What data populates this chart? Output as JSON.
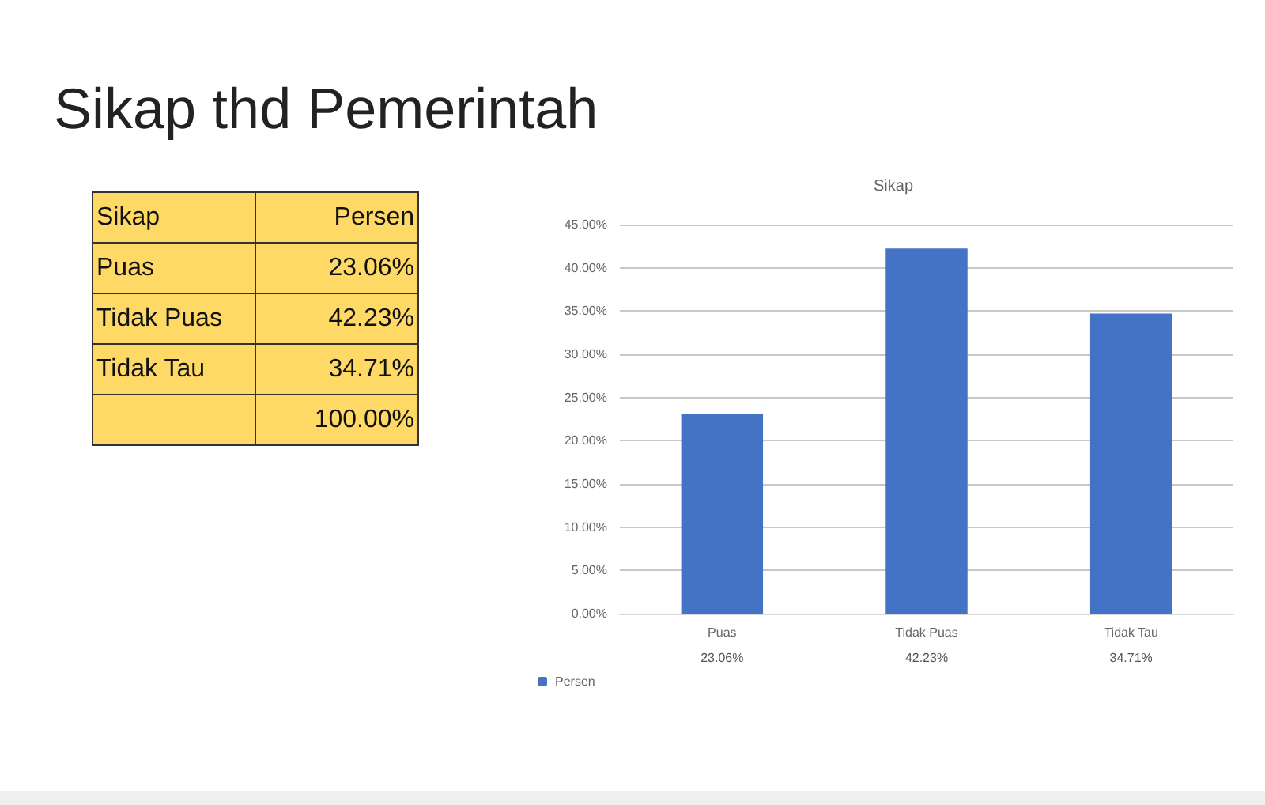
{
  "chart_data": [
    {
      "type": "other",
      "title": "Sikap thd Pemerintah",
      "annotations": [
        "Sikap",
        "Persen",
        "Puas",
        "23.06%",
        "Tidak Puas",
        "42.23%",
        "Tidak Tau",
        "34.71%",
        "100.00%"
      ]
    },
    {
      "type": "bar",
      "title": "Sikap",
      "categories": [
        "Puas",
        "Tidak Puas",
        "Tidak Tau"
      ],
      "series": [
        {
          "name": "Persen",
          "color": "#4472c4",
          "values": [
            23.06,
            42.23,
            34.71
          ]
        }
      ],
      "value_labels": [
        "23.06%",
        "42.23%",
        "34.71%"
      ],
      "ylim": [
        0,
        45
      ],
      "yticks": [
        {
          "value": 0,
          "label": "0.00%"
        },
        {
          "value": 5,
          "label": "5.00%"
        },
        {
          "value": 10,
          "label": "10.00%"
        },
        {
          "value": 15,
          "label": "15.00%"
        },
        {
          "value": 20,
          "label": "20.00%"
        },
        {
          "value": 25,
          "label": "25.00%"
        },
        {
          "value": 30,
          "label": "30.00%"
        },
        {
          "value": 35,
          "label": "35.00%"
        },
        {
          "value": 40,
          "label": "40.00%"
        },
        {
          "value": 45,
          "label": "45.00%"
        }
      ],
      "grid": true,
      "legend": "bottom left"
    }
  ]
}
